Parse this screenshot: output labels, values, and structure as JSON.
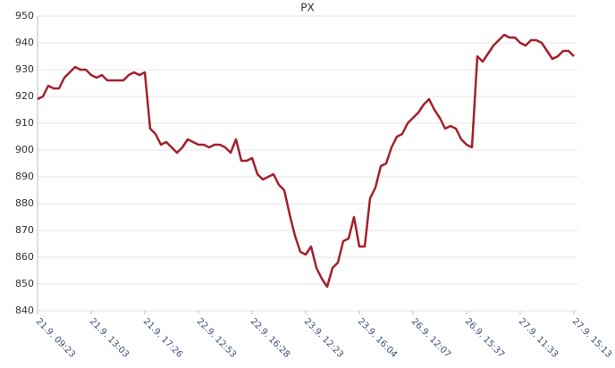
{
  "chart_data": {
    "type": "line",
    "title": "PX",
    "categories": [
      "21.9. 09:23",
      null,
      null,
      null,
      null,
      null,
      null,
      null,
      null,
      null,
      "21.9. 13:03",
      null,
      null,
      null,
      null,
      null,
      null,
      null,
      null,
      null,
      "21.9. 17:26",
      null,
      null,
      null,
      null,
      null,
      null,
      null,
      null,
      null,
      "22.9. 12:53",
      null,
      null,
      null,
      null,
      null,
      null,
      null,
      null,
      null,
      "22.9. 16:28",
      null,
      null,
      null,
      null,
      null,
      null,
      null,
      null,
      null,
      "23.9. 12:23",
      null,
      null,
      null,
      null,
      null,
      null,
      null,
      null,
      null,
      "23.9. 16:04",
      null,
      null,
      null,
      null,
      null,
      null,
      null,
      null,
      null,
      "26.9. 12:07",
      null,
      null,
      null,
      null,
      null,
      null,
      null,
      null,
      null,
      "26.9. 15:37",
      null,
      null,
      null,
      null,
      null,
      null,
      null,
      null,
      null,
      "27.9. 11:33",
      null,
      null,
      null,
      null,
      null,
      null,
      null,
      null,
      null,
      "27.9. 15:13"
    ],
    "series": [
      {
        "color": "#a3202c",
        "values": [
          919,
          920,
          924,
          923,
          923,
          927,
          929,
          931,
          930,
          930,
          928,
          927,
          928,
          926,
          926,
          926,
          926,
          928,
          929,
          928,
          929,
          908,
          906,
          902,
          903,
          901,
          899,
          901,
          904,
          903,
          902,
          902,
          901,
          902,
          902,
          901,
          899,
          904,
          896,
          896,
          897,
          891,
          889,
          890,
          891,
          887,
          885,
          876,
          868,
          862,
          861,
          864,
          856,
          852,
          849,
          856,
          858,
          866,
          867,
          875,
          864,
          864,
          882,
          886,
          894,
          895,
          901,
          905,
          906,
          910,
          912,
          914,
          917,
          919,
          915,
          912,
          908,
          909,
          908,
          904,
          902,
          901,
          935,
          933,
          936,
          939,
          941,
          943,
          942,
          942,
          940,
          939,
          941,
          941,
          940,
          937,
          934,
          935,
          937,
          937,
          935
        ]
      }
    ],
    "ylim": [
      840,
      950
    ],
    "yticks": [
      840,
      850,
      860,
      870,
      880,
      890,
      900,
      910,
      920,
      930,
      940,
      950
    ],
    "grid": true
  }
}
